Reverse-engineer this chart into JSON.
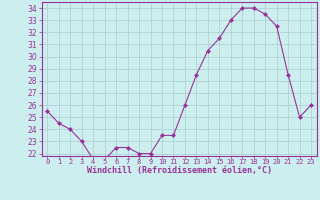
{
  "x": [
    0,
    1,
    2,
    3,
    4,
    5,
    6,
    7,
    8,
    9,
    10,
    11,
    12,
    13,
    14,
    15,
    16,
    17,
    18,
    19,
    20,
    21,
    22,
    23
  ],
  "y": [
    25.5,
    24.5,
    24.0,
    23.0,
    21.5,
    21.5,
    22.5,
    22.5,
    22.0,
    22.0,
    23.5,
    23.5,
    26.0,
    28.5,
    30.5,
    31.5,
    33.0,
    34.0,
    34.0,
    33.5,
    32.5,
    28.5,
    25.0,
    26.0
  ],
  "line_color": "#993399",
  "marker": "D",
  "marker_size": 2.0,
  "bg_color": "#cceeee",
  "grid_color": "#aacccc",
  "xlabel": "Windchill (Refroidissement éolien,°C)",
  "xlabel_color": "#993399",
  "tick_color": "#993399",
  "label_color": "#993399",
  "ylim": [
    21.8,
    34.5
  ],
  "xlim": [
    -0.5,
    23.5
  ],
  "yticks": [
    22,
    23,
    24,
    25,
    26,
    27,
    28,
    29,
    30,
    31,
    32,
    33,
    34
  ],
  "xtick_labels": [
    "0",
    "1",
    "2",
    "3",
    "4",
    "5",
    "6",
    "7",
    "8",
    "9",
    "10",
    "11",
    "12",
    "13",
    "14",
    "15",
    "16",
    "17",
    "18",
    "19",
    "20",
    "21",
    "22",
    "23"
  ]
}
